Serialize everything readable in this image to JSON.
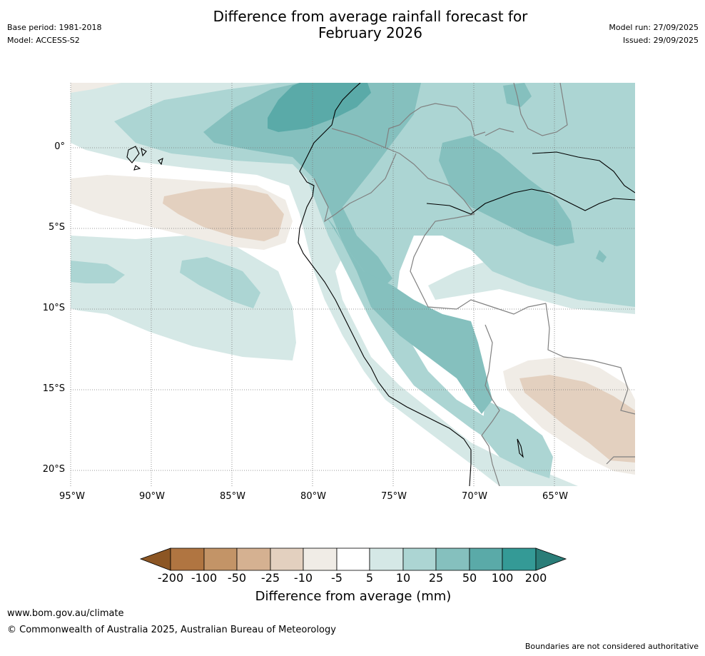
{
  "title": {
    "line1": "Difference from average rainfall forecast for",
    "line2": "February 2026"
  },
  "meta": {
    "base_period": "Base period: 1981-2018",
    "model": "Model: ACCESS-S2",
    "model_run": "Model run: 27/09/2025",
    "issued": "Issued: 29/09/2025"
  },
  "map": {
    "latitude_labels": [
      "0°",
      "5°S",
      "10°S",
      "15°S",
      "20°S"
    ],
    "longitude_labels": [
      "95°W",
      "90°W",
      "85°W",
      "80°W",
      "75°W",
      "70°W",
      "65°W"
    ],
    "region": "Eastern Pacific / Ecuador / Peru / western Brazil / Bolivia"
  },
  "colorbar": {
    "title": "Difference from average (mm)",
    "tick_labels": [
      "-200",
      "-100",
      "-50",
      "-25",
      "-10",
      "-5",
      "5",
      "10",
      "25",
      "50",
      "100",
      "200"
    ],
    "colors": {
      "below_-200": "#8c5624",
      "-200_to_-100": "#b07541",
      "-100_to_-50": "#c39467",
      "-50_to_-25": "#d5b191",
      "-25_to_-10": "#e3d0bf",
      "-10_to_-5": "#f0ece6",
      "-5_to_5": "#ffffff",
      "5_to_10": "#d5e8e6",
      "10_to_25": "#acd5d3",
      "25_to_50": "#85c0be",
      "50_to_100": "#5aaaa8",
      "100_to_200": "#349a96",
      "above_200": "#2a7d78"
    }
  },
  "footer": {
    "website": "www.bom.gov.au/climate",
    "copyright": "© Commonwealth of Australia 2025, Australian Bureau of Meteorology",
    "disclaimer": "Boundaries are not considered authoritative"
  }
}
